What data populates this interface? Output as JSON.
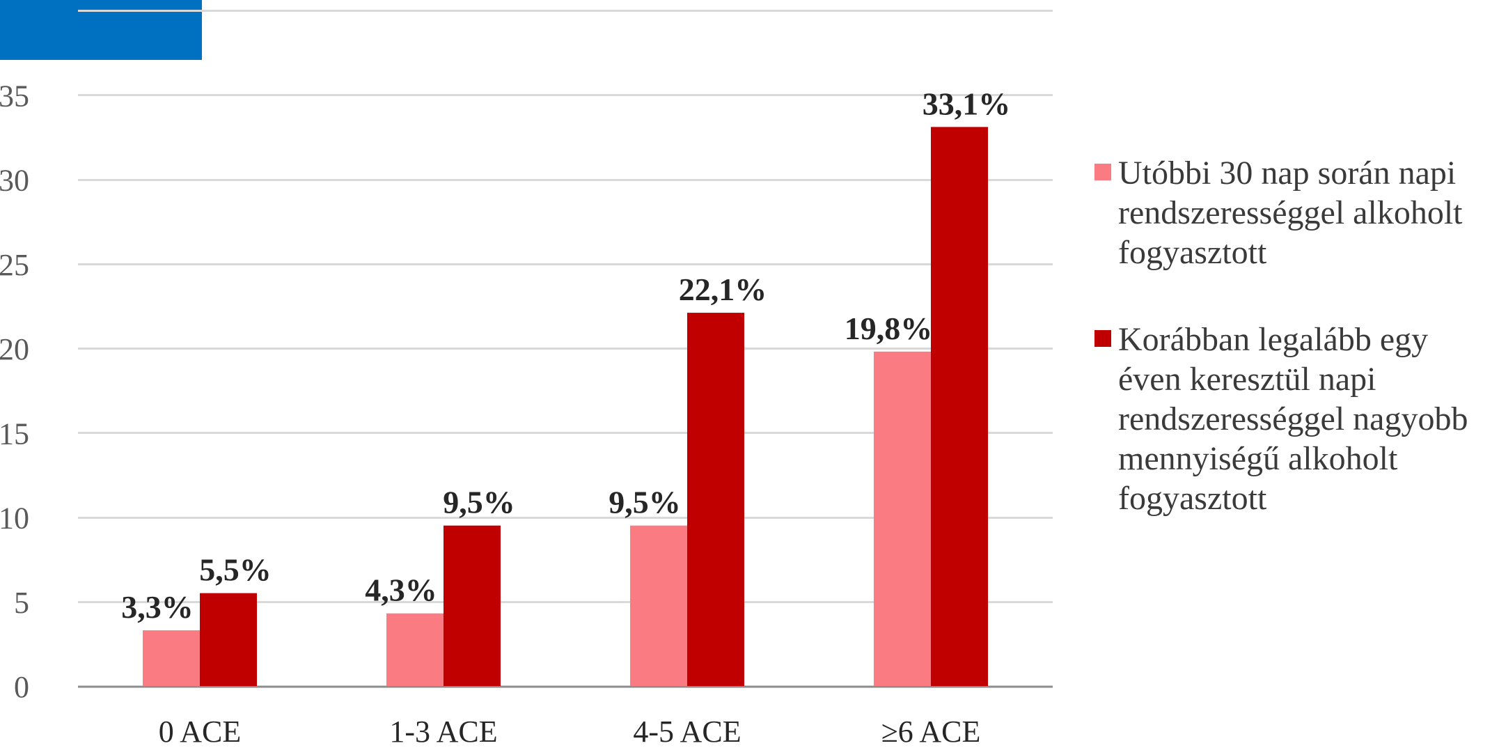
{
  "colors": {
    "series1": "#fb7b83",
    "series2": "#c00000",
    "grid": "#d9d9d9",
    "axis": "#8c8c8c",
    "tick_text": "#595959",
    "label_text": "#262626",
    "corner_box": "#0070c0"
  },
  "chart_data": {
    "type": "bar",
    "title": "",
    "xlabel": "",
    "ylabel": "",
    "categories": [
      "0 ACE",
      "1-3 ACE",
      "4-5 ACE",
      "≥6 ACE"
    ],
    "ylim": [
      0,
      40
    ],
    "yticks": [
      0,
      5,
      10,
      15,
      20,
      25,
      30,
      35
    ],
    "grid": true,
    "legend_position": "right",
    "series": [
      {
        "name": "Utóbbi 30 nap során napi rendszerességgel alkoholt fogyasztott",
        "values": [
          3.3,
          4.3,
          9.5,
          19.8
        ],
        "labels": [
          "3,3%",
          "4,3%",
          "9,5%",
          "19,8%"
        ]
      },
      {
        "name": "Korábban legalább egy éven keresztül napi rendszerességgel nagyobb mennyiségű alkoholt fogyasztott",
        "values": [
          5.5,
          9.5,
          22.1,
          33.1
        ],
        "labels": [
          "5,5%",
          "9,5%",
          "22,1%",
          "33,1%"
        ]
      }
    ]
  },
  "legend": {
    "items": [
      {
        "label": "Utóbbi 30 nap során napi rendszerességgel alkoholt fogyasztott"
      },
      {
        "label": "Korábban legalább egy éven keresztül napi rendszerességgel nagyobb mennyiségű alkoholt fogyasztott"
      }
    ]
  }
}
